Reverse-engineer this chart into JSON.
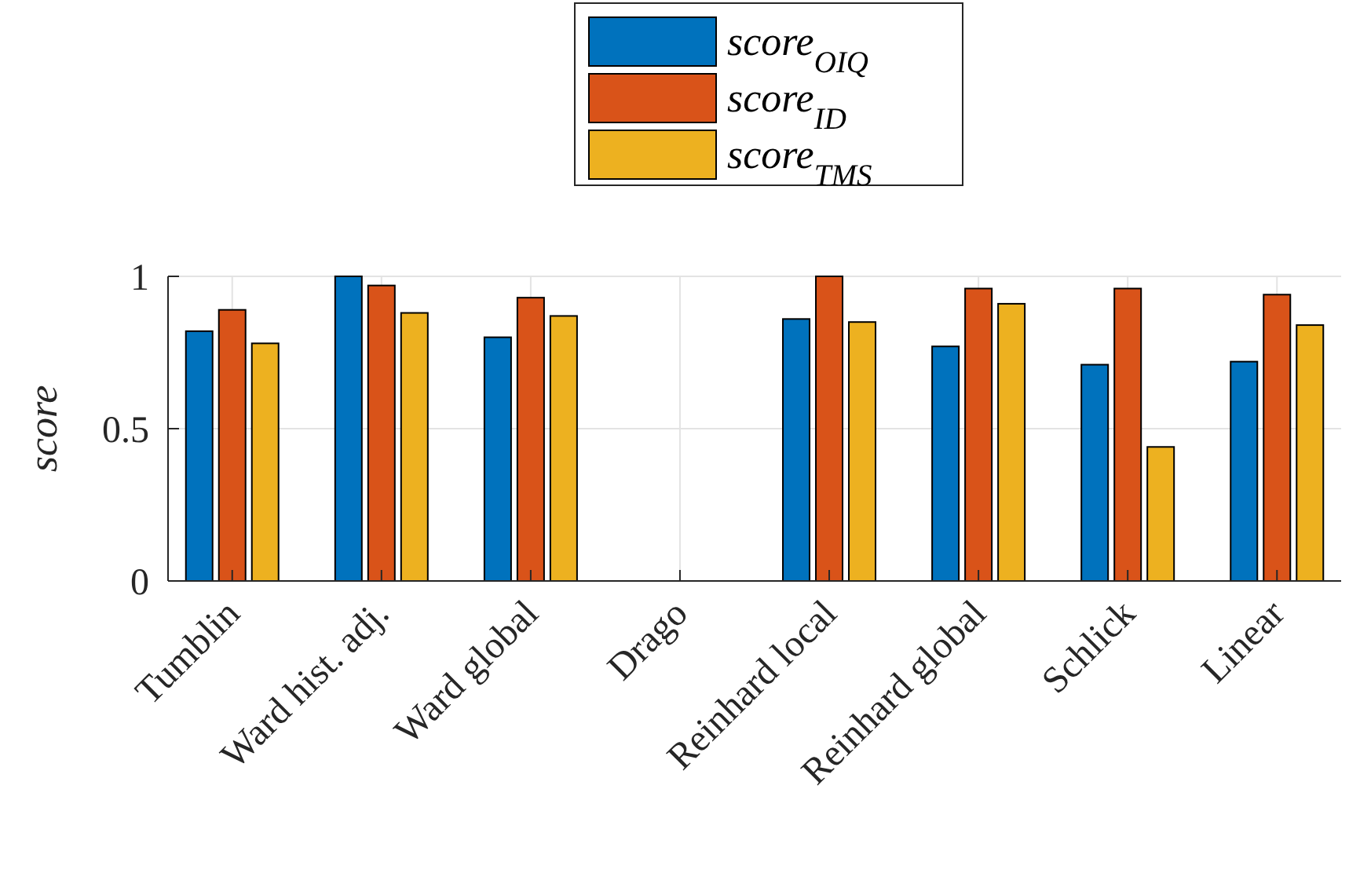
{
  "chart_data": {
    "type": "bar",
    "ylabel": "score",
    "categories": [
      "Tumblin",
      "Ward hist. adj.",
      "Ward global",
      "Drago",
      "Reinhard local",
      "Reinhard global",
      "Schlick",
      "Linear"
    ],
    "series": [
      {
        "name": "score$_{OIQ}$",
        "color": "#0072bd",
        "values": [
          0.82,
          1.0,
          0.8,
          0,
          0.86,
          0.77,
          0.71,
          0.72
        ]
      },
      {
        "name": "score$_{ID}$",
        "color": "#d95319",
        "values": [
          0.89,
          0.97,
          0.93,
          0,
          1.0,
          0.96,
          0.96,
          0.94
        ]
      },
      {
        "name": "score$_{TMS}$",
        "color": "#edb120",
        "values": [
          0.78,
          0.88,
          0.87,
          0,
          0.85,
          0.91,
          0.44,
          0.84
        ]
      }
    ],
    "ylim": [
      0,
      1
    ],
    "yticks": [
      0,
      0.5,
      1
    ],
    "grid": true,
    "legend": "top"
  }
}
